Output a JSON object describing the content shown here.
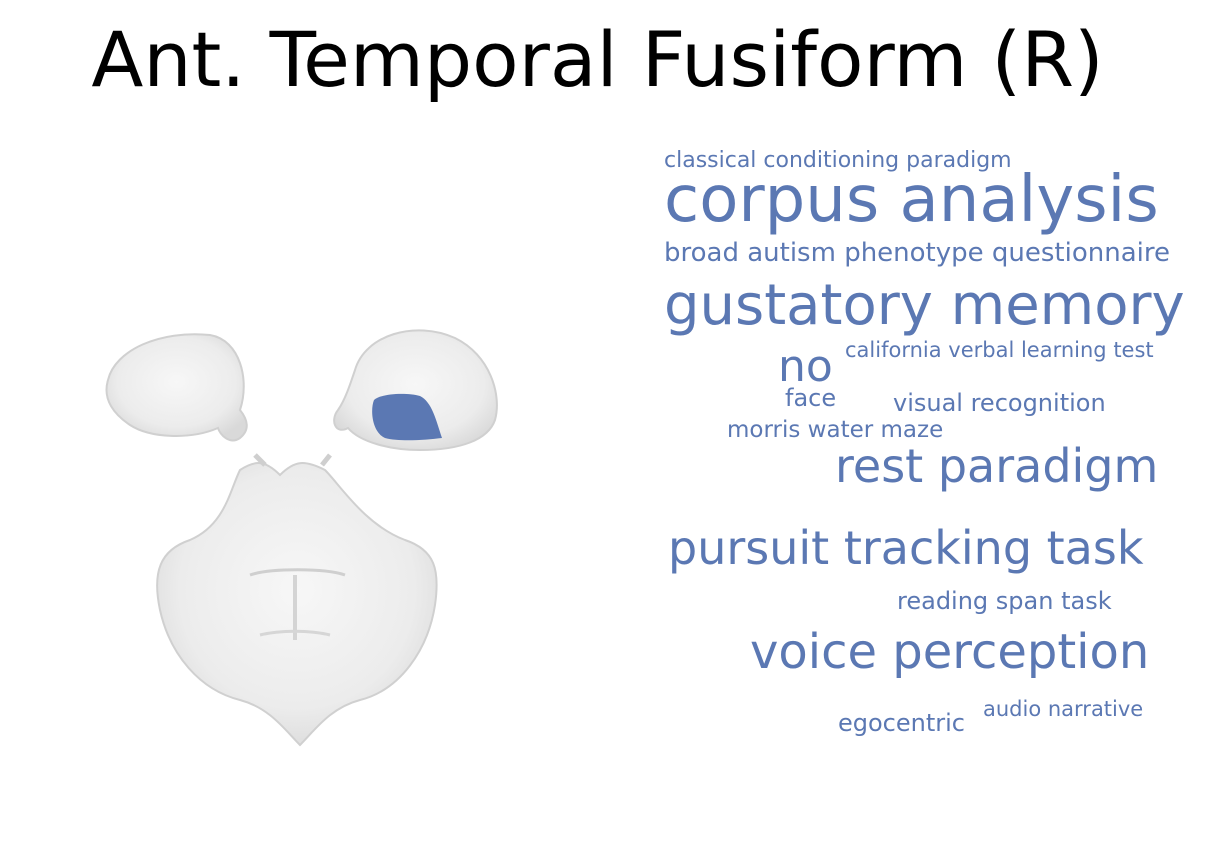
{
  "title": "Ant. Temporal Fusiform (R)",
  "region_color": "#5b78b3",
  "word_color": "#5b78b3",
  "words": [
    "classical conditioning paradigm",
    "corpus analysis",
    "broad autism phenotype questionnaire",
    "gustatory memory",
    "no",
    "california verbal learning test",
    "face",
    "visual recognition",
    "morris water maze",
    "rest paradigm",
    "pursuit tracking task",
    "reading span task",
    "voice perception",
    "egocentric",
    "audio narrative"
  ]
}
